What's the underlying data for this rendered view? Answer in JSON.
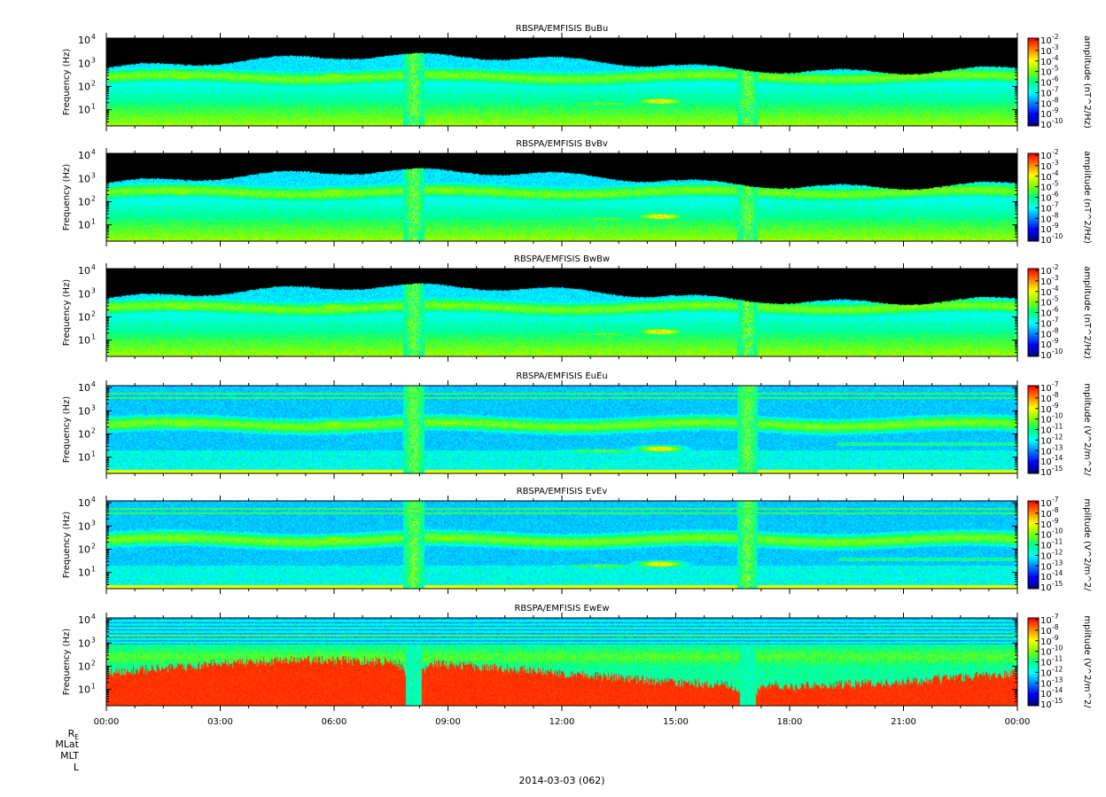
{
  "chart_data": [
    {
      "type": "heatmap",
      "title": "RBSPA/EMFISIS  BuBu",
      "ylabel": "Frequency (Hz)",
      "yscale": "log",
      "ylim": [
        2,
        12000
      ],
      "y_ticks": [
        {
          "base": "10",
          "exp": "1"
        },
        {
          "base": "10",
          "exp": "2"
        },
        {
          "base": "10",
          "exp": "3"
        },
        {
          "base": "10",
          "exp": "4"
        }
      ],
      "colorbar": {
        "label": "amplitude (nT^2/Hz)",
        "scale": "log",
        "range": [
          -10,
          -2
        ],
        "ticks": [
          {
            "base": "10",
            "exp": "-2"
          },
          {
            "base": "10",
            "exp": "-3"
          },
          {
            "base": "10",
            "exp": "-4"
          },
          {
            "base": "10",
            "exp": "-5"
          },
          {
            "base": "10",
            "exp": "-6"
          },
          {
            "base": "10",
            "exp": "-7"
          },
          {
            "base": "10",
            "exp": "-8"
          },
          {
            "base": "10",
            "exp": "-9"
          },
          {
            "base": "10",
            "exp": "-10"
          }
        ]
      },
      "variant": "B"
    },
    {
      "type": "heatmap",
      "title": "RBSPA/EMFISIS  BvBv",
      "ylabel": "Frequency (Hz)",
      "yscale": "log",
      "ylim": [
        2,
        12000
      ],
      "y_ticks": [
        {
          "base": "10",
          "exp": "1"
        },
        {
          "base": "10",
          "exp": "2"
        },
        {
          "base": "10",
          "exp": "3"
        },
        {
          "base": "10",
          "exp": "4"
        }
      ],
      "colorbar": {
        "label": "amplitude (nT^2/Hz)",
        "scale": "log",
        "range": [
          -10,
          -2
        ],
        "ticks": [
          {
            "base": "10",
            "exp": "-2"
          },
          {
            "base": "10",
            "exp": "-3"
          },
          {
            "base": "10",
            "exp": "-4"
          },
          {
            "base": "10",
            "exp": "-5"
          },
          {
            "base": "10",
            "exp": "-6"
          },
          {
            "base": "10",
            "exp": "-7"
          },
          {
            "base": "10",
            "exp": "-8"
          },
          {
            "base": "10",
            "exp": "-9"
          },
          {
            "base": "10",
            "exp": "-10"
          }
        ]
      },
      "variant": "B"
    },
    {
      "type": "heatmap",
      "title": "RBSPA/EMFISIS  BwBw",
      "ylabel": "Frequency (Hz)",
      "yscale": "log",
      "ylim": [
        2,
        12000
      ],
      "y_ticks": [
        {
          "base": "10",
          "exp": "1"
        },
        {
          "base": "10",
          "exp": "2"
        },
        {
          "base": "10",
          "exp": "3"
        },
        {
          "base": "10",
          "exp": "4"
        }
      ],
      "colorbar": {
        "label": "amplitude (nT^2/Hz)",
        "scale": "log",
        "range": [
          -10,
          -2
        ],
        "ticks": [
          {
            "base": "10",
            "exp": "-2"
          },
          {
            "base": "10",
            "exp": "-3"
          },
          {
            "base": "10",
            "exp": "-4"
          },
          {
            "base": "10",
            "exp": "-5"
          },
          {
            "base": "10",
            "exp": "-6"
          },
          {
            "base": "10",
            "exp": "-7"
          },
          {
            "base": "10",
            "exp": "-8"
          },
          {
            "base": "10",
            "exp": "-9"
          },
          {
            "base": "10",
            "exp": "-10"
          }
        ]
      },
      "variant": "Bw"
    },
    {
      "type": "heatmap",
      "title": "RBSPA/EMFISIS  EuEu",
      "ylabel": "Frequency (Hz)",
      "yscale": "log",
      "ylim": [
        2,
        12000
      ],
      "y_ticks": [
        {
          "base": "10",
          "exp": "1"
        },
        {
          "base": "10",
          "exp": "2"
        },
        {
          "base": "10",
          "exp": "3"
        },
        {
          "base": "10",
          "exp": "4"
        }
      ],
      "colorbar": {
        "label": "mplitude (V^2/m^2/",
        "scale": "log",
        "range": [
          -15,
          -7
        ],
        "ticks": [
          {
            "base": "10",
            "exp": "-7"
          },
          {
            "base": "10",
            "exp": "-8"
          },
          {
            "base": "10",
            "exp": "-9"
          },
          {
            "base": "10",
            "exp": "-10"
          },
          {
            "base": "10",
            "exp": "-11"
          },
          {
            "base": "10",
            "exp": "-12"
          },
          {
            "base": "10",
            "exp": "-13"
          },
          {
            "base": "10",
            "exp": "-14"
          },
          {
            "base": "10",
            "exp": "-15"
          }
        ]
      },
      "variant": "E"
    },
    {
      "type": "heatmap",
      "title": "RBSPA/EMFISIS  EvEv",
      "ylabel": "Frequency (Hz)",
      "yscale": "log",
      "ylim": [
        2,
        12000
      ],
      "y_ticks": [
        {
          "base": "10",
          "exp": "1"
        },
        {
          "base": "10",
          "exp": "2"
        },
        {
          "base": "10",
          "exp": "3"
        },
        {
          "base": "10",
          "exp": "4"
        }
      ],
      "colorbar": {
        "label": "mplitude (V^2/m^2/",
        "scale": "log",
        "range": [
          -15,
          -7
        ],
        "ticks": [
          {
            "base": "10",
            "exp": "-7"
          },
          {
            "base": "10",
            "exp": "-8"
          },
          {
            "base": "10",
            "exp": "-9"
          },
          {
            "base": "10",
            "exp": "-10"
          },
          {
            "base": "10",
            "exp": "-11"
          },
          {
            "base": "10",
            "exp": "-12"
          },
          {
            "base": "10",
            "exp": "-13"
          },
          {
            "base": "10",
            "exp": "-14"
          },
          {
            "base": "10",
            "exp": "-15"
          }
        ]
      },
      "variant": "E"
    },
    {
      "type": "heatmap",
      "title": "RBSPA/EMFISIS  EwEw",
      "ylabel": "Frequency (Hz)",
      "yscale": "log",
      "ylim": [
        2,
        12000
      ],
      "y_ticks": [
        {
          "base": "10",
          "exp": "1"
        },
        {
          "base": "10",
          "exp": "2"
        },
        {
          "base": "10",
          "exp": "3"
        },
        {
          "base": "10",
          "exp": "4"
        }
      ],
      "colorbar": {
        "label": "mplitude (V^2/m^2/",
        "scale": "log",
        "range": [
          -15,
          -7
        ],
        "ticks": [
          {
            "base": "10",
            "exp": "-7"
          },
          {
            "base": "10",
            "exp": "-8"
          },
          {
            "base": "10",
            "exp": "-9"
          },
          {
            "base": "10",
            "exp": "-10"
          },
          {
            "base": "10",
            "exp": "-11"
          },
          {
            "base": "10",
            "exp": "-12"
          },
          {
            "base": "10",
            "exp": "-13"
          },
          {
            "base": "10",
            "exp": "-14"
          },
          {
            "base": "10",
            "exp": "-15"
          }
        ]
      },
      "variant": "Ew"
    }
  ],
  "x_axis": {
    "range_hours": [
      0,
      24
    ],
    "tick_labels": [
      "00:00",
      "03:00",
      "06:00",
      "09:00",
      "12:00",
      "15:00",
      "18:00",
      "21:00",
      "00:00"
    ],
    "minor_ticks_per_major": 3
  },
  "ephemeris_labels": {
    "re": {
      "base": "R",
      "sub": "E"
    },
    "rows": [
      "MLat",
      "MLT",
      "L"
    ]
  },
  "date_label": "2014-03-03 (062)",
  "colormap": [
    "#000080",
    "#0000ff",
    "#0080ff",
    "#00ffff",
    "#00ff80",
    "#80ff00",
    "#ffff00",
    "#ff8000",
    "#ff0000"
  ]
}
